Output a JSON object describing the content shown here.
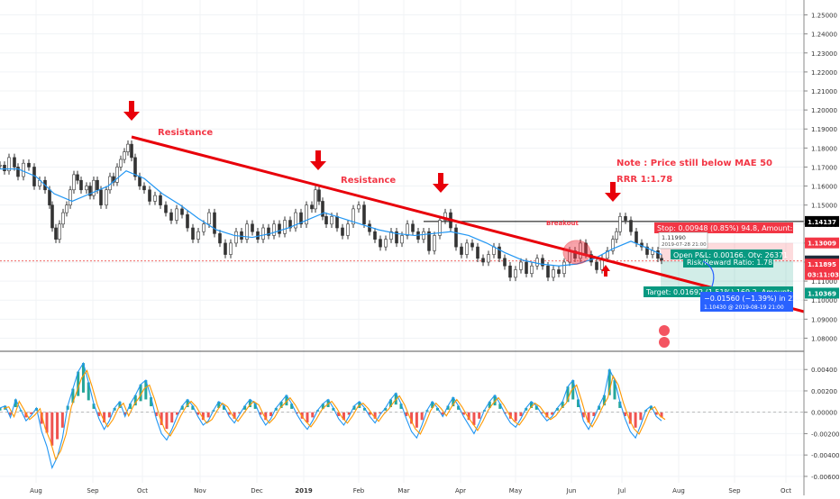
{
  "chart_data": {
    "type": "line",
    "symbol": "",
    "x_ticks": [
      "Aug",
      "Sep",
      "Oct",
      "Nov",
      "Dec",
      "2019",
      "Feb",
      "Mar",
      "Apr",
      "May",
      "Jun",
      "Jul",
      "Aug",
      "Sep",
      "Oct"
    ],
    "price_axis": {
      "ylim": [
        1.075,
        1.255
      ],
      "ticks": [
        "1.25000",
        "1.24000",
        "1.23000",
        "1.22000",
        "1.21000",
        "1.20000",
        "1.19000",
        "1.18000",
        "1.17000",
        "1.16000",
        "1.15000",
        "1.14000",
        "1.13000",
        "1.12000",
        "1.11000",
        "1.10000",
        "1.09000",
        "1.08000"
      ]
    },
    "price_badges": [
      {
        "label": "1.14137",
        "value": 1.14137,
        "color": "#000000"
      },
      {
        "label": "1.13009",
        "value": 1.13009,
        "color": "#f23645"
      },
      {
        "label": "1.12061",
        "value": 1.12061,
        "color": "#1e2b3a"
      },
      {
        "label": "1.11895",
        "value": 1.11895,
        "color": "#f23645"
      },
      {
        "label": "03:11:03",
        "value": 1.1135,
        "color": "#f23645"
      },
      {
        "label": "1.10369",
        "value": 1.10369,
        "color": "#089981"
      }
    ],
    "series": [
      {
        "name": "Price",
        "color": "#26a69a",
        "x": [
          0,
          5,
          10,
          16,
          20,
          26,
          32,
          38,
          44,
          50,
          55,
          58,
          62,
          66,
          70,
          74,
          78,
          82,
          86,
          90,
          96,
          100,
          104,
          108,
          112,
          118,
          122,
          126,
          130,
          134,
          138,
          142,
          146,
          150,
          155,
          160,
          166,
          172,
          178,
          184,
          190,
          196,
          202,
          208,
          214,
          220,
          226,
          232,
          238,
          244,
          250,
          256,
          262,
          268,
          274,
          280,
          286,
          292,
          298,
          304,
          310,
          316,
          322,
          328,
          334,
          340,
          346,
          350,
          354,
          358,
          362,
          368,
          374,
          380,
          386,
          392,
          398,
          404,
          410,
          416,
          422,
          428,
          434,
          440,
          446,
          452,
          458,
          464,
          470,
          476,
          482,
          488,
          494,
          500,
          506,
          512,
          518,
          524,
          530,
          536,
          542,
          548,
          554,
          560,
          566,
          572,
          578,
          584,
          590,
          596,
          602,
          608,
          614,
          620,
          626,
          632,
          638,
          644,
          650,
          656,
          662,
          668,
          674,
          680,
          684,
          688,
          694,
          700,
          706,
          712,
          718,
          724,
          730,
          734
        ],
        "y": [
          1.171,
          1.168,
          1.175,
          1.17,
          1.165,
          1.172,
          1.17,
          1.16,
          1.163,
          1.158,
          1.15,
          1.138,
          1.132,
          1.14,
          1.146,
          1.15,
          1.158,
          1.166,
          1.163,
          1.158,
          1.16,
          1.155,
          1.163,
          1.158,
          1.15,
          1.158,
          1.165,
          1.162,
          1.17,
          1.174,
          1.178,
          1.182,
          1.175,
          1.165,
          1.16,
          1.158,
          1.152,
          1.155,
          1.15,
          1.146,
          1.142,
          1.148,
          1.145,
          1.138,
          1.132,
          1.136,
          1.14,
          1.146,
          1.135,
          1.13,
          1.124,
          1.13,
          1.136,
          1.132,
          1.14,
          1.136,
          1.132,
          1.138,
          1.134,
          1.14,
          1.135,
          1.142,
          1.138,
          1.146,
          1.14,
          1.15,
          1.148,
          1.158,
          1.152,
          1.144,
          1.14,
          1.144,
          1.138,
          1.134,
          1.14,
          1.148,
          1.15,
          1.14,
          1.136,
          1.132,
          1.128,
          1.132,
          1.136,
          1.13,
          1.134,
          1.14,
          1.136,
          1.132,
          1.136,
          1.126,
          1.134,
          1.142,
          1.146,
          1.138,
          1.128,
          1.124,
          1.13,
          1.128,
          1.122,
          1.12,
          1.124,
          1.128,
          1.122,
          1.118,
          1.112,
          1.116,
          1.12,
          1.114,
          1.118,
          1.122,
          1.118,
          1.112,
          1.116,
          1.114,
          1.12,
          1.126,
          1.122,
          1.13,
          1.124,
          1.12,
          1.116,
          1.122,
          1.126,
          1.132,
          1.136,
          1.144,
          1.142,
          1.136,
          1.13,
          1.128,
          1.124,
          1.126,
          1.122,
          1.121
        ]
      },
      {
        "name": "MA 50",
        "color": "#2196f3",
        "x": [
          0,
          20,
          40,
          60,
          80,
          100,
          120,
          140,
          160,
          180,
          200,
          220,
          240,
          260,
          280,
          300,
          320,
          340,
          360,
          380,
          400,
          420,
          440,
          460,
          480,
          500,
          520,
          540,
          560,
          580,
          600,
          620,
          640,
          660,
          680,
          700,
          720,
          734
        ],
        "y": [
          1.169,
          1.169,
          1.165,
          1.156,
          1.152,
          1.156,
          1.16,
          1.168,
          1.164,
          1.156,
          1.15,
          1.143,
          1.137,
          1.134,
          1.133,
          1.135,
          1.138,
          1.142,
          1.146,
          1.143,
          1.14,
          1.137,
          1.135,
          1.134,
          1.135,
          1.136,
          1.134,
          1.13,
          1.125,
          1.121,
          1.119,
          1.118,
          1.119,
          1.122,
          1.127,
          1.131,
          1.127,
          1.124
        ]
      }
    ],
    "oscillator": {
      "ylim": [
        -0.0066,
        0.0052
      ],
      "ticks": [
        "0.00400",
        "0.00200",
        "0.00000",
        "-0.00200",
        "-0.00400",
        "-0.00600"
      ],
      "values": [
        0.0004,
        0.0006,
        -0.0005,
        0.0012,
        0.0002,
        -0.0008,
        -0.0003,
        0.0004,
        -0.0018,
        -0.0032,
        -0.0052,
        -0.0042,
        -0.0024,
        0.0006,
        0.0022,
        0.0038,
        0.0046,
        0.0028,
        0.0008,
        -0.0006,
        -0.0016,
        -0.0008,
        0.0004,
        0.001,
        -0.0004,
        0.0008,
        0.0016,
        0.0026,
        0.003,
        0.0014,
        -0.0006,
        -0.002,
        -0.0026,
        -0.0016,
        -0.0004,
        0.0006,
        0.0012,
        0.0006,
        -0.0004,
        -0.0012,
        -0.0008,
        0.0002,
        0.001,
        0.0006,
        -0.0004,
        -0.001,
        -0.0002,
        0.0006,
        0.0012,
        0.0008,
        -0.0004,
        -0.0012,
        -0.0006,
        0.0004,
        0.001,
        0.0016,
        0.0008,
        -0.0002,
        -0.001,
        -0.0016,
        -0.0008,
        0.0002,
        0.0008,
        0.0012,
        0.0004,
        -0.0006,
        -0.0012,
        -0.0004,
        0.0006,
        0.001,
        0.0004,
        -0.0004,
        -0.001,
        -0.0002,
        0.0004,
        0.0012,
        0.0018,
        0.0008,
        -0.0006,
        -0.0018,
        -0.0024,
        -0.0012,
        0.0002,
        0.001,
        0.0004,
        -0.0004,
        0.0006,
        0.0014,
        0.0006,
        -0.0004,
        -0.0012,
        -0.002,
        -0.001,
        0.0002,
        0.001,
        0.0016,
        0.0008,
        -0.0002,
        -0.001,
        -0.0014,
        -0.0006,
        0.0004,
        0.001,
        0.0006,
        -0.0002,
        -0.0008,
        -0.0004,
        0.0004,
        0.001,
        0.0024,
        0.003,
        0.0012,
        -0.0008,
        -0.0016,
        -0.0006,
        0.0006,
        0.0016,
        0.004,
        0.003,
        0.001,
        -0.0006,
        -0.0018,
        -0.0024,
        -0.0012,
        0.0002,
        0.0006,
        -0.0004,
        -0.0008
      ]
    },
    "annotations": [
      {
        "text": "Resistance",
        "x": 175,
        "y": 150,
        "color": "#f23645"
      },
      {
        "text": "Resistance",
        "x": 378,
        "y": 203,
        "color": "#f23645"
      },
      {
        "text": "Breakout",
        "x": 606,
        "y": 250,
        "color": "#f23645"
      },
      {
        "text": "Note : Price still below MAE 50",
        "x": 684,
        "y": 184,
        "color": "#f23645"
      },
      {
        "text": "RRR 1:1.78",
        "x": 684,
        "y": 202,
        "color": "#f23645"
      }
    ],
    "position_tool": {
      "stop_label": "Stop: 0.00948 (0.85%) 94.8, Amount: 750",
      "pnl_label": "Open P&L: 0.00166, Qty: 26371",
      "rr_label": "Risk/Reward Ratio: 1.78",
      "target_label": "Target: 0.01692 (1.51%) 169.2, Amount: 446.",
      "projection_label": "−0.01560 (−1.39%) in 22d",
      "projection_sub": "1.10430 @ 2019-08-19 21:00",
      "tooltip_price": "1.11990",
      "tooltip_date": "2019-07-28 21:00"
    },
    "resistance_line": {
      "x1": 146,
      "y1": 152,
      "x2": 892,
      "y2": 346
    },
    "horizontal_level": 1.14137,
    "colors": {
      "up": "#26a69a",
      "down": "#ef5350",
      "trend": "#e8000a",
      "ma": "#2196f3"
    }
  }
}
